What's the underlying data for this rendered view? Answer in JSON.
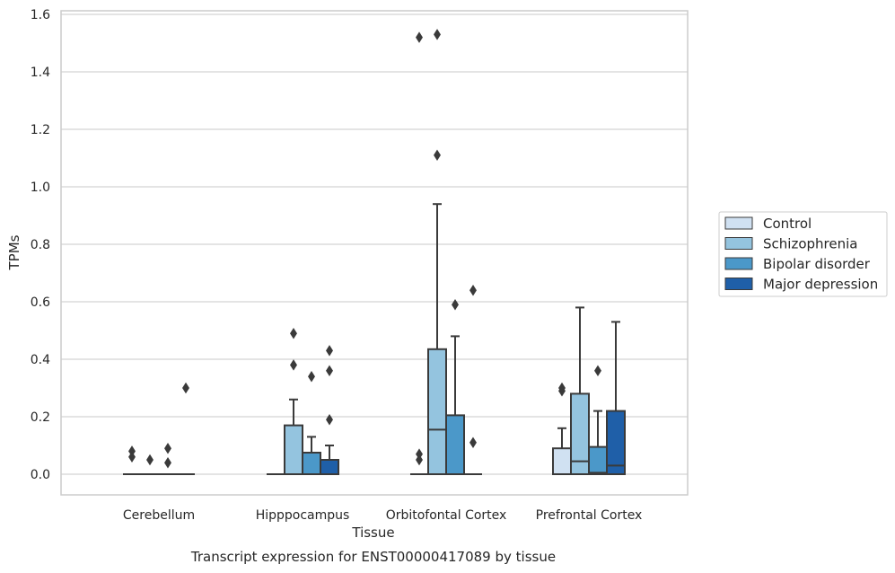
{
  "chart_data": {
    "type": "box",
    "xlabel": "Tissue",
    "ylabel": "TPMs",
    "caption": "Transcript expression for ENST00000417089 by tissue",
    "ylim": [
      -0.075,
      1.61
    ],
    "yticks": [
      "0.0",
      "0.2",
      "0.4",
      "0.6",
      "0.8",
      "1.0",
      "1.2",
      "1.4",
      "1.6"
    ],
    "grid": true,
    "legend_position": "right",
    "categories": [
      "Cerebellum",
      "Hipppocampus",
      "Orbitofontal Cortex",
      "Prefrontal Cortex"
    ],
    "series": [
      {
        "name": "Control",
        "color": "#d0e1f2",
        "boxes": [
          {
            "category": "Cerebellum",
            "min": 0,
            "q1": 0,
            "median": 0,
            "q3": 0,
            "max": 0,
            "outliers": [
              0.08,
              0.06
            ]
          },
          {
            "category": "Hipppocampus",
            "min": 0,
            "q1": 0,
            "median": 0,
            "q3": 0,
            "max": 0,
            "outliers": []
          },
          {
            "category": "Orbitofontal Cortex",
            "min": 0,
            "q1": 0,
            "median": 0,
            "q3": 0,
            "max": 0,
            "outliers": [
              0.07,
              0.05,
              1.52
            ]
          },
          {
            "category": "Prefrontal Cortex",
            "min": 0,
            "q1": 0,
            "median": 0,
            "q3": 0.09,
            "max": 0.16,
            "outliers": [
              0.29,
              0.3
            ]
          }
        ]
      },
      {
        "name": "Schizophrenia",
        "color": "#94c4df",
        "boxes": [
          {
            "category": "Cerebellum",
            "min": 0,
            "q1": 0,
            "median": 0,
            "q3": 0,
            "max": 0,
            "outliers": [
              0.05
            ]
          },
          {
            "category": "Hipppocampus",
            "min": 0,
            "q1": 0,
            "median": 0,
            "q3": 0.17,
            "max": 0.26,
            "outliers": [
              0.49,
              0.38
            ]
          },
          {
            "category": "Orbitofontal Cortex",
            "min": 0,
            "q1": 0,
            "median": 0.155,
            "q3": 0.435,
            "max": 0.94,
            "outliers": [
              1.53,
              1.11
            ]
          },
          {
            "category": "Prefrontal Cortex",
            "min": 0,
            "q1": 0,
            "median": 0.045,
            "q3": 0.28,
            "max": 0.58,
            "outliers": []
          }
        ]
      },
      {
        "name": "Bipolar disorder",
        "color": "#4b98c9",
        "boxes": [
          {
            "category": "Cerebellum",
            "min": 0,
            "q1": 0,
            "median": 0,
            "q3": 0,
            "max": 0,
            "outliers": [
              0.09,
              0.04
            ]
          },
          {
            "category": "Hipppocampus",
            "min": 0,
            "q1": 0,
            "median": 0,
            "q3": 0.075,
            "max": 0.13,
            "outliers": [
              0.34
            ]
          },
          {
            "category": "Orbitofontal Cortex",
            "min": 0,
            "q1": 0,
            "median": 0,
            "q3": 0.205,
            "max": 0.48,
            "outliers": [
              0.59
            ]
          },
          {
            "category": "Prefrontal Cortex",
            "min": 0,
            "q1": 0,
            "median": 0.005,
            "q3": 0.095,
            "max": 0.22,
            "outliers": [
              0.36
            ]
          }
        ]
      },
      {
        "name": "Major depression",
        "color": "#1f5fa8",
        "boxes": [
          {
            "category": "Cerebellum",
            "min": 0,
            "q1": 0,
            "median": 0,
            "q3": 0,
            "max": 0,
            "outliers": [
              0.3
            ]
          },
          {
            "category": "Hipppocampus",
            "min": 0,
            "q1": 0,
            "median": 0,
            "q3": 0.05,
            "max": 0.1,
            "outliers": [
              0.43,
              0.36,
              0.19
            ]
          },
          {
            "category": "Orbitofontal Cortex",
            "min": 0,
            "q1": 0,
            "median": 0,
            "q3": 0,
            "max": 0,
            "outliers": [
              0.64,
              0.11
            ]
          },
          {
            "category": "Prefrontal Cortex",
            "min": 0,
            "q1": 0,
            "median": 0.03,
            "q3": 0.22,
            "max": 0.53,
            "outliers": []
          }
        ]
      }
    ]
  }
}
